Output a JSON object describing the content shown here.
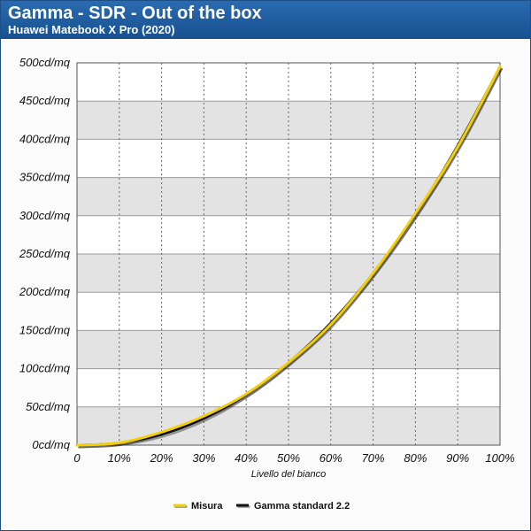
{
  "chart_data": {
    "type": "line",
    "title": "Gamma - SDR - Out of the box",
    "subtitle": "Huawei Matebook X Pro (2020)",
    "xlabel": "Livello del bianco",
    "ylabel": "",
    "x": [
      0,
      10,
      20,
      30,
      40,
      50,
      60,
      70,
      80,
      90,
      100
    ],
    "x_tick_labels": [
      "0",
      "10%",
      "20%",
      "30%",
      "40%",
      "50%",
      "60%",
      "70%",
      "80%",
      "90%",
      "100%"
    ],
    "xlim": [
      0,
      100
    ],
    "ylim": [
      0,
      500
    ],
    "y_ticks": [
      0,
      50,
      100,
      150,
      200,
      250,
      300,
      350,
      400,
      450,
      500
    ],
    "y_tick_labels": [
      "0cd/mq",
      "50cd/mq",
      "100cd/mq",
      "150cd/mq",
      "200cd/mq",
      "250cd/mq",
      "300cd/mq",
      "350cd/mq",
      "400cd/mq",
      "450cd/mq",
      "500cd/mq"
    ],
    "grid": true,
    "legend_position": "bottom-center",
    "series": [
      {
        "name": "Misura",
        "color": "#f5d000",
        "values": [
          0,
          3,
          17,
          38,
          67,
          108,
          158,
          225,
          303,
          390,
          495
        ]
      },
      {
        "name": "Gamma standard 2.2",
        "color": "#111111",
        "values": [
          0,
          3,
          14,
          35,
          66,
          108,
          160,
          225,
          302,
          392,
          495
        ]
      }
    ]
  }
}
